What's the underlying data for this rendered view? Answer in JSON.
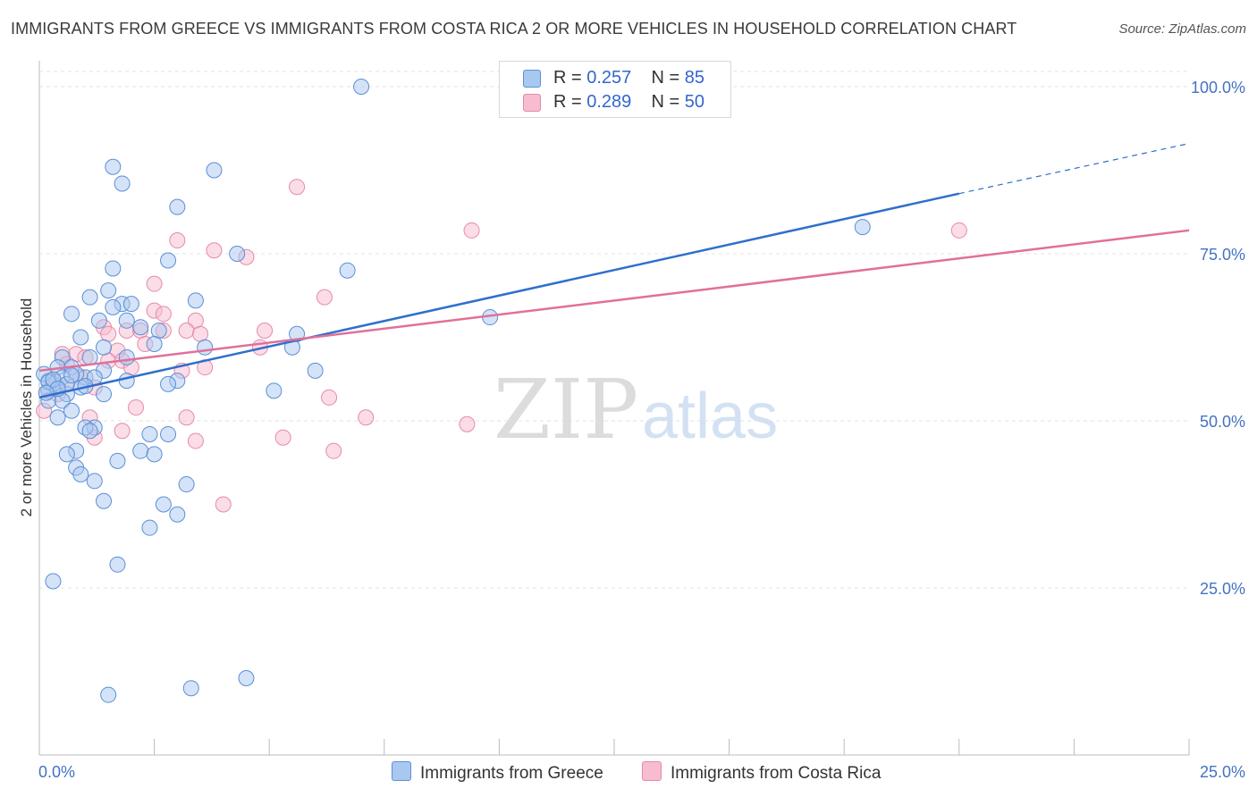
{
  "title": "IMMIGRANTS FROM GREECE VS IMMIGRANTS FROM COSTA RICA 2 OR MORE VEHICLES IN HOUSEHOLD CORRELATION CHART",
  "source": "Source: ZipAtlas.com",
  "watermark": {
    "zip": "ZIP",
    "atlas": "atlas"
  },
  "legend": {
    "greece": {
      "r_label": "R =",
      "r_value": "0.257",
      "n_label": "N =",
      "n_value": "85"
    },
    "costa_rica": {
      "r_label": "R =",
      "r_value": "0.289",
      "n_label": "N =",
      "n_value": "50"
    }
  },
  "bottom_legend": {
    "greece": "Immigrants from Greece",
    "costa_rica": "Immigrants from Costa Rica"
  },
  "colors": {
    "greece_fill": "#a9c8f0",
    "greece_stroke": "#5b8fd6",
    "greece_line": "#2f6fcc",
    "costa_fill": "#f7bcd0",
    "costa_stroke": "#e58aa9",
    "costa_line": "#e0709a",
    "grid": "#e3e3e3"
  },
  "chart_data": {
    "type": "scatter",
    "title": "IMMIGRANTS FROM GREECE VS IMMIGRANTS FROM COSTA RICA 2 OR MORE VEHICLES IN HOUSEHOLD CORRELATION CHART",
    "xlabel": "",
    "ylabel": "2 or more Vehicles in Household",
    "xlim": [
      0,
      25
    ],
    "ylim": [
      0,
      102
    ],
    "x_tick_labels": [
      "0.0%",
      "25.0%"
    ],
    "y_ticks": [
      25,
      50,
      75,
      100
    ],
    "y_tick_labels": [
      "25.0%",
      "50.0%",
      "75.0%",
      "100.0%"
    ],
    "series": [
      {
        "name": "Immigrants from Greece",
        "trend": {
          "x0": 0,
          "y0": 53.5,
          "x1": 20,
          "y1": 84.0,
          "dash_to_x": 25,
          "dash_to_y": 91.5
        },
        "points": [
          [
            7.0,
            100.0
          ],
          [
            1.6,
            88.0
          ],
          [
            3.8,
            87.5
          ],
          [
            1.8,
            85.5
          ],
          [
            3.0,
            82.0
          ],
          [
            4.3,
            75.0
          ],
          [
            2.8,
            74.0
          ],
          [
            6.7,
            72.5
          ],
          [
            1.6,
            72.8
          ],
          [
            1.5,
            69.5
          ],
          [
            1.1,
            68.5
          ],
          [
            3.4,
            68.0
          ],
          [
            1.8,
            67.5
          ],
          [
            2.0,
            67.5
          ],
          [
            1.6,
            67.0
          ],
          [
            0.7,
            66.0
          ],
          [
            1.3,
            65.0
          ],
          [
            1.9,
            65.0
          ],
          [
            9.8,
            65.5
          ],
          [
            17.9,
            79.0
          ],
          [
            2.2,
            64.0
          ],
          [
            2.6,
            63.5
          ],
          [
            5.6,
            63.0
          ],
          [
            0.9,
            62.5
          ],
          [
            3.6,
            61.0
          ],
          [
            1.4,
            61.0
          ],
          [
            5.5,
            61.0
          ],
          [
            2.5,
            61.5
          ],
          [
            1.9,
            59.5
          ],
          [
            0.5,
            59.5
          ],
          [
            1.1,
            59.5
          ],
          [
            0.7,
            58.0
          ],
          [
            0.4,
            58.0
          ],
          [
            1.4,
            57.5
          ],
          [
            6.0,
            57.5
          ],
          [
            1.0,
            56.5
          ],
          [
            1.9,
            56.0
          ],
          [
            3.0,
            56.0
          ],
          [
            2.8,
            55.5
          ],
          [
            0.4,
            55.0
          ],
          [
            0.9,
            55.0
          ],
          [
            5.1,
            54.5
          ],
          [
            0.6,
            54.0
          ],
          [
            1.4,
            54.0
          ],
          [
            0.2,
            54.5
          ],
          [
            0.2,
            53.0
          ],
          [
            0.5,
            53.0
          ],
          [
            0.7,
            51.5
          ],
          [
            0.4,
            50.5
          ],
          [
            1.2,
            49.0
          ],
          [
            1.0,
            49.0
          ],
          [
            2.4,
            48.0
          ],
          [
            2.8,
            48.0
          ],
          [
            1.1,
            48.5
          ],
          [
            0.8,
            45.5
          ],
          [
            2.2,
            45.5
          ],
          [
            0.6,
            45.0
          ],
          [
            2.5,
            45.0
          ],
          [
            1.7,
            44.0
          ],
          [
            0.8,
            43.0
          ],
          [
            0.9,
            42.0
          ],
          [
            1.2,
            41.0
          ],
          [
            3.2,
            40.5
          ],
          [
            1.4,
            38.0
          ],
          [
            2.7,
            37.5
          ],
          [
            3.0,
            36.0
          ],
          [
            2.4,
            34.0
          ],
          [
            1.7,
            28.5
          ],
          [
            0.3,
            26.0
          ],
          [
            1.5,
            9.0
          ],
          [
            3.3,
            10.0
          ],
          [
            4.5,
            11.5
          ],
          [
            0.2,
            56.0
          ],
          [
            0.3,
            55.5
          ],
          [
            0.8,
            57.0
          ],
          [
            1.2,
            56.5
          ],
          [
            0.5,
            56.5
          ],
          [
            0.1,
            57.0
          ],
          [
            0.2,
            55.8
          ],
          [
            0.6,
            55.5
          ],
          [
            0.3,
            56.2
          ],
          [
            0.4,
            54.8
          ],
          [
            1.0,
            55.2
          ],
          [
            0.7,
            56.8
          ],
          [
            0.15,
            54.2
          ]
        ]
      },
      {
        "name": "Immigrants from Costa Rica",
        "trend": {
          "x0": 0,
          "y0": 57.5,
          "x1": 25,
          "y1": 78.5
        },
        "points": [
          [
            5.6,
            85.0
          ],
          [
            9.4,
            78.5
          ],
          [
            20.0,
            78.5
          ],
          [
            3.0,
            77.0
          ],
          [
            3.8,
            75.5
          ],
          [
            4.5,
            74.5
          ],
          [
            2.5,
            70.5
          ],
          [
            6.2,
            68.5
          ],
          [
            2.5,
            66.5
          ],
          [
            2.7,
            66.0
          ],
          [
            3.4,
            65.0
          ],
          [
            1.4,
            64.0
          ],
          [
            1.9,
            63.5
          ],
          [
            2.2,
            63.5
          ],
          [
            4.9,
            63.5
          ],
          [
            1.5,
            63.0
          ],
          [
            2.7,
            63.5
          ],
          [
            3.2,
            63.5
          ],
          [
            3.5,
            63.0
          ],
          [
            2.3,
            61.5
          ],
          [
            4.8,
            61.0
          ],
          [
            1.7,
            60.5
          ],
          [
            0.5,
            60.0
          ],
          [
            0.8,
            60.0
          ],
          [
            1.0,
            59.5
          ],
          [
            1.5,
            59.0
          ],
          [
            1.8,
            59.0
          ],
          [
            0.6,
            58.5
          ],
          [
            3.1,
            57.5
          ],
          [
            2.0,
            58.0
          ],
          [
            3.6,
            58.0
          ],
          [
            1.2,
            55.0
          ],
          [
            0.4,
            54.0
          ],
          [
            0.2,
            54.5
          ],
          [
            0.9,
            56.5
          ],
          [
            6.3,
            53.5
          ],
          [
            2.1,
            52.0
          ],
          [
            0.1,
            51.5
          ],
          [
            1.1,
            50.5
          ],
          [
            3.2,
            50.5
          ],
          [
            7.1,
            50.5
          ],
          [
            9.3,
            49.5
          ],
          [
            1.8,
            48.5
          ],
          [
            1.2,
            47.5
          ],
          [
            5.3,
            47.5
          ],
          [
            3.4,
            47.0
          ],
          [
            6.4,
            45.5
          ],
          [
            4.0,
            37.5
          ],
          [
            0.3,
            56.0
          ],
          [
            0.6,
            55.5
          ]
        ]
      }
    ]
  }
}
